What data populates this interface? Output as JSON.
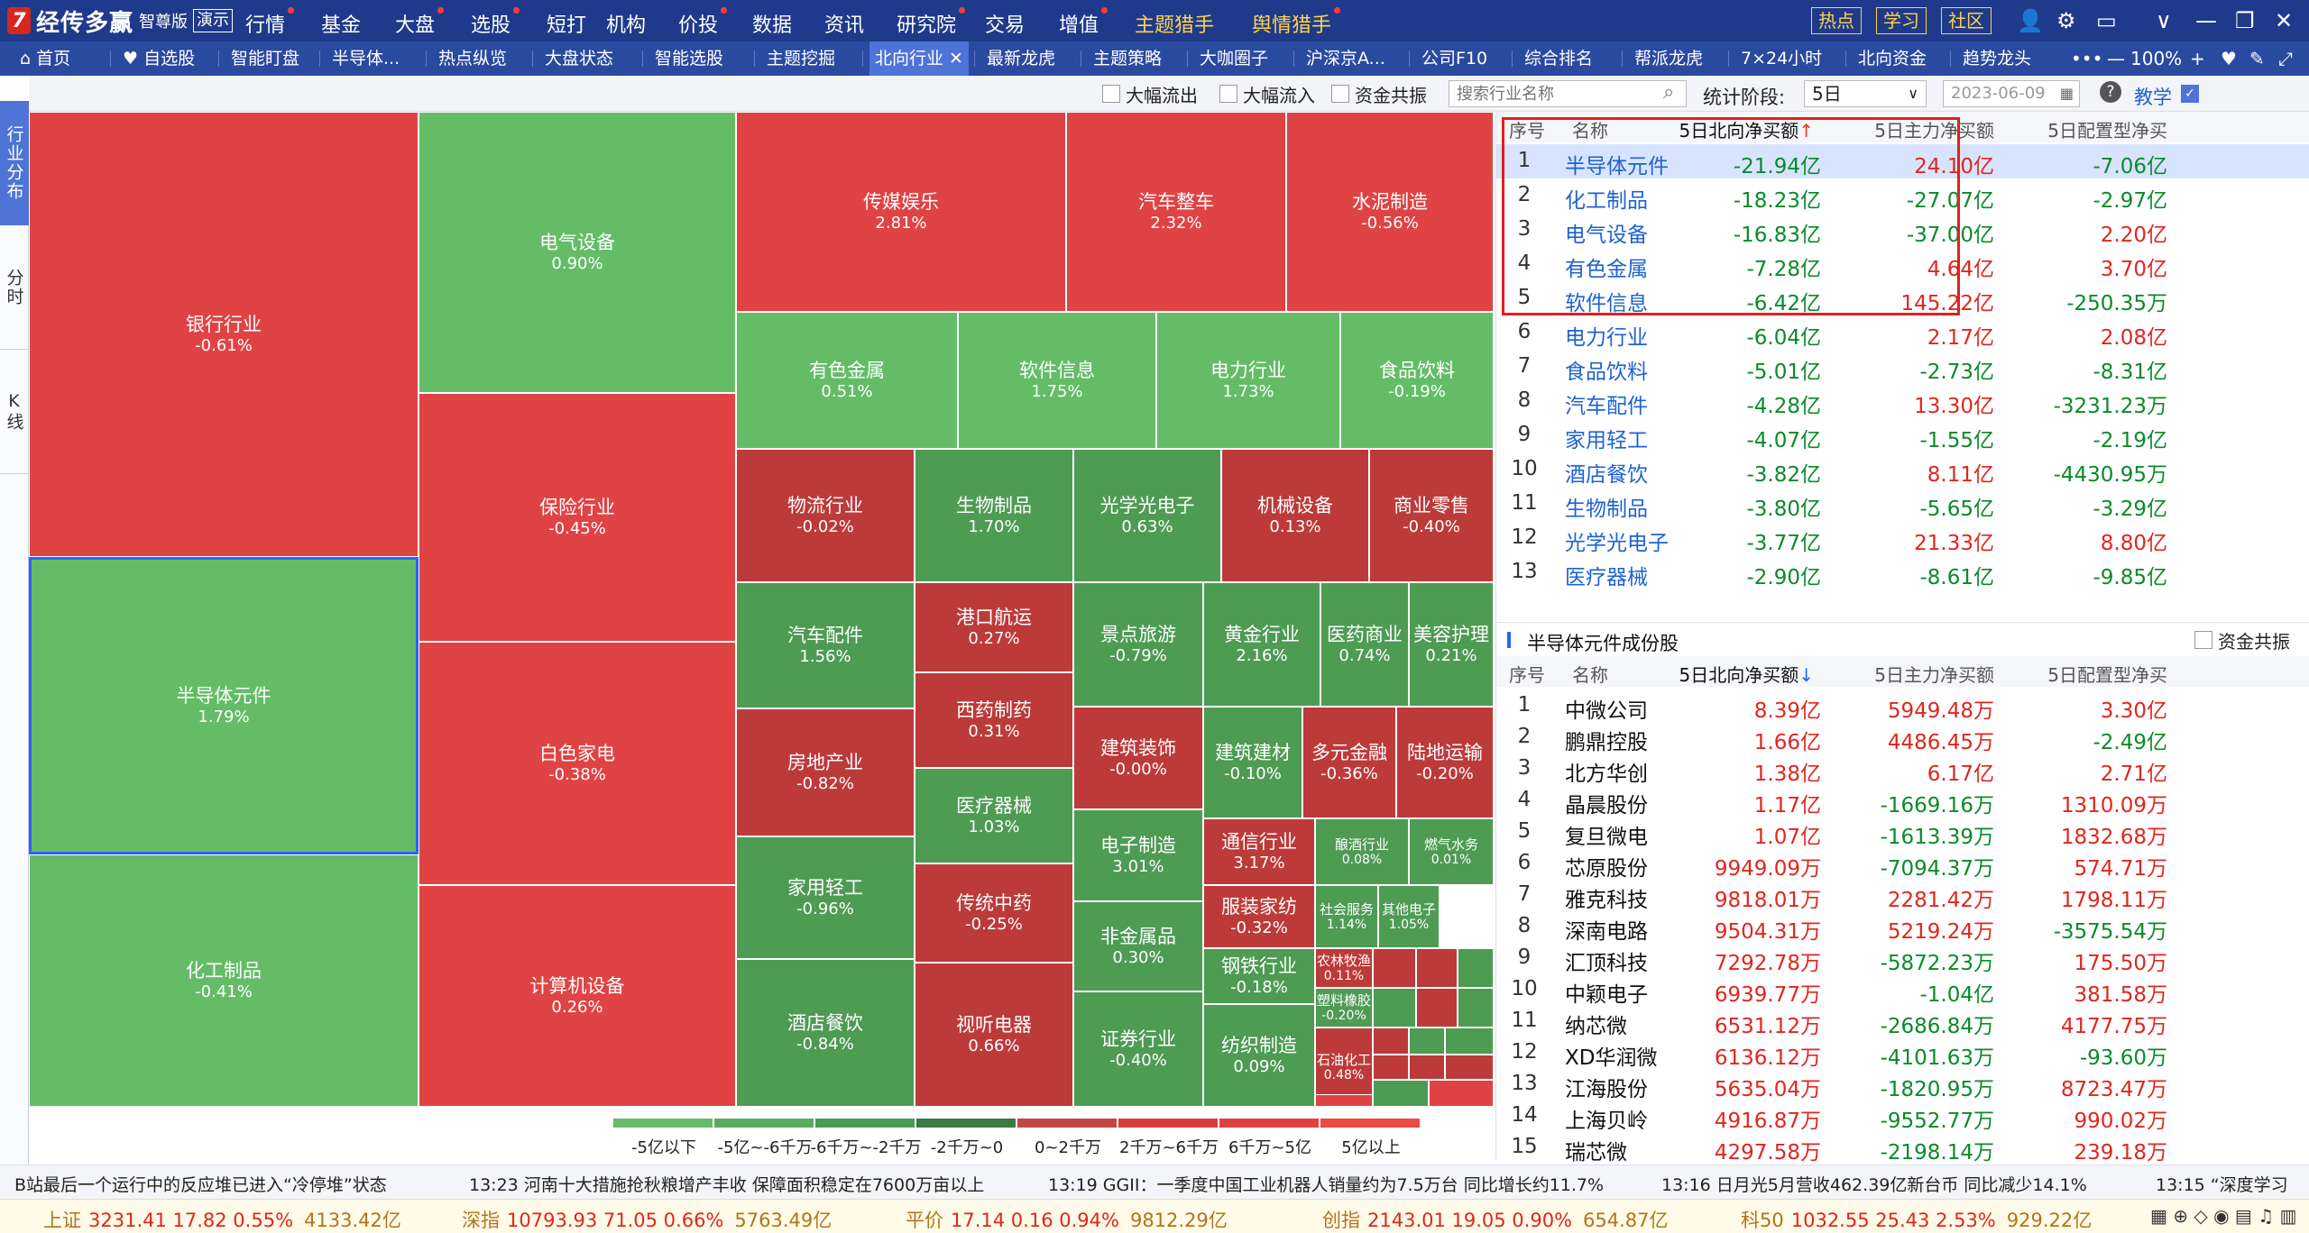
{
  "app": {
    "logo_mark": "7",
    "title": "经传多赢",
    "edition": "智尊版",
    "demo": "演示"
  },
  "menu": [
    {
      "label": "行情",
      "dot": true
    },
    {
      "label": "基金",
      "dot": false
    },
    {
      "label": "大盘",
      "dot": true
    },
    {
      "label": "选股",
      "dot": true
    },
    {
      "label": "短打",
      "dot": false
    },
    {
      "label": "机构",
      "dot": false
    },
    {
      "label": "价投",
      "dot": true
    },
    {
      "label": "数据",
      "dot": false
    },
    {
      "label": "资讯",
      "dot": false
    },
    {
      "label": "研究院",
      "dot": true
    },
    {
      "label": "交易",
      "dot": false
    },
    {
      "label": "增值",
      "dot": true
    },
    {
      "label": "主题猎手",
      "dot": false
    },
    {
      "label": "舆情猎手",
      "dot": true
    }
  ],
  "quick_buttons": [
    "热点",
    "学习",
    "社区"
  ],
  "window_controls": {
    "user": "👤",
    "settings": "⚙",
    "layout": "▭",
    "dropdown": "∨",
    "minimize": "—",
    "restore": "❐",
    "close": "✕"
  },
  "tabs": [
    {
      "label": "⌂ 首页"
    },
    {
      "label": "♥ 自选股"
    },
    {
      "label": "智能盯盘"
    },
    {
      "label": "半导体..."
    },
    {
      "label": "热点纵览"
    },
    {
      "label": "大盘状态"
    },
    {
      "label": "智能选股"
    },
    {
      "label": "主题挖掘"
    },
    {
      "label": "北向行业 ✕",
      "active": true
    },
    {
      "label": "最新龙虎"
    },
    {
      "label": "主题策略"
    },
    {
      "label": "大咖圈子"
    },
    {
      "label": "沪深京A..."
    },
    {
      "label": "公司F10"
    },
    {
      "label": "综合排名"
    },
    {
      "label": "帮派龙虎"
    },
    {
      "label": "7×24小时"
    },
    {
      "label": "北向资金"
    },
    {
      "label": "趋势龙头"
    }
  ],
  "tab_right": {
    "more": "•••",
    "zoom_out": "—",
    "zoom": "100%",
    "zoom_in": "+",
    "fav": "♥",
    "edit": "✎",
    "expand": "⤢"
  },
  "left_tabs": [
    "行业分布",
    "分时",
    "K线"
  ],
  "toolbar": {
    "check_outflow": "大幅流出",
    "check_inflow": "大幅流入",
    "check_resonance": "资金共振",
    "search_placeholder": "搜索行业名称",
    "stat_label": "统计阶段:",
    "period": "5日",
    "date": "2023-06-09",
    "help_icon": "?",
    "teach": "教学"
  },
  "legend": {
    "colors": [
      "#66bb6a",
      "#5cab60",
      "#4c9a55",
      "#3a7a45",
      "#c44545",
      "#d63d3a",
      "#e04040",
      "#e84a44"
    ],
    "labels": [
      "-5亿以下",
      "-5亿~-6千万",
      "-6千万~-2千万",
      "-2千万~0",
      "0~2千万",
      "2千万~6千万",
      "6千万~5亿",
      "5亿以上"
    ]
  },
  "heatmap": {
    "cells": [
      {
        "name": "银行行业",
        "value": "-0.61%",
        "color": "#e04343"
      },
      {
        "name": "半导体元件",
        "value": "1.79%",
        "color": "#64bd66",
        "selected": true
      },
      {
        "name": "化工制品",
        "value": "-0.41%",
        "color": "#64bd66"
      },
      {
        "name": "电气设备",
        "value": "0.90%",
        "color": "#64bd66"
      },
      {
        "name": "保险行业",
        "value": "-0.45%",
        "color": "#e04343"
      },
      {
        "name": "白色家电",
        "value": "-0.38%",
        "color": "#e04343"
      },
      {
        "name": "计算机设备",
        "value": "0.26%",
        "color": "#e04343"
      },
      {
        "name": "传媒娱乐",
        "value": "2.81%",
        "color": "#e04343"
      },
      {
        "name": "汽车整车",
        "value": "2.32%",
        "color": "#e04343"
      },
      {
        "name": "水泥制造",
        "value": "-0.56%",
        "color": "#e04343"
      },
      {
        "name": "有色金属",
        "value": "0.51%",
        "color": "#64bd66"
      },
      {
        "name": "软件信息",
        "value": "1.75%",
        "color": "#64bd66"
      },
      {
        "name": "电力行业",
        "value": "1.73%",
        "color": "#64bd66"
      },
      {
        "name": "食品饮料",
        "value": "-0.19%",
        "color": "#64bd66"
      },
      {
        "name": "物流行业",
        "value": "-0.02%",
        "color": "#bd3a3a"
      },
      {
        "name": "生物制品",
        "value": "1.70%",
        "color": "#4e9b54"
      },
      {
        "name": "光学光电子",
        "value": "0.63%",
        "color": "#4e9b54"
      },
      {
        "name": "机械设备",
        "value": "0.13%",
        "color": "#bd3a3a"
      },
      {
        "name": "商业零售",
        "value": "-0.40%",
        "color": "#bd3a3a"
      },
      {
        "name": "汽车配件",
        "value": "1.56%",
        "color": "#4e9b54"
      },
      {
        "name": "港口航运",
        "value": "0.27%",
        "color": "#bd3a3a"
      },
      {
        "name": "西药制药",
        "value": "0.31%",
        "color": "#bd3a3a"
      },
      {
        "name": "景点旅游",
        "value": "-0.79%",
        "color": "#4e9b54"
      },
      {
        "name": "黄金行业",
        "value": "2.16%",
        "color": "#4e9b54"
      },
      {
        "name": "医药商业",
        "value": "0.74%",
        "color": "#4e9b54"
      },
      {
        "name": "美容护理",
        "value": "0.21%",
        "color": "#4e9b54"
      },
      {
        "name": "房地产业",
        "value": "-0.82%",
        "color": "#bd3a3a"
      },
      {
        "name": "建筑装饰",
        "value": "-0.00%",
        "color": "#bd3a3a"
      },
      {
        "name": "建筑建材",
        "value": "-0.10%",
        "color": "#4e9b54"
      },
      {
        "name": "多元金融",
        "value": "-0.36%",
        "color": "#bd3a3a"
      },
      {
        "name": "陆地运输",
        "value": "-0.20%",
        "color": "#bd3a3a"
      },
      {
        "name": "医疗器械",
        "value": "1.03%",
        "color": "#4e9b54"
      },
      {
        "name": "家用轻工",
        "value": "-0.96%",
        "color": "#4e9b54"
      },
      {
        "name": "电子制造",
        "value": "3.01%",
        "color": "#4e9b54"
      },
      {
        "name": "通信行业",
        "value": "3.17%",
        "color": "#bd3a3a"
      },
      {
        "name": "酿酒行业",
        "value": "0.08%",
        "color": "#4e9b54"
      },
      {
        "name": "燃气水务",
        "value": "0.01%",
        "color": "#4e9b54"
      },
      {
        "name": "传统中药",
        "value": "-0.25%",
        "color": "#bd3a3a"
      },
      {
        "name": "非金属品",
        "value": "0.30%",
        "color": "#4e9b54"
      },
      {
        "name": "服装家纺",
        "value": "-0.32%",
        "color": "#bd3a3a"
      },
      {
        "name": "社会服务",
        "value": "1.14%",
        "color": "#4e9b54"
      },
      {
        "name": "其他电子",
        "value": "1.05%",
        "color": "#4e9b54"
      },
      {
        "name": "酒店餐饮",
        "value": "-0.84%",
        "color": "#4e9b54"
      },
      {
        "name": "视听电器",
        "value": "0.66%",
        "color": "#bd3a3a"
      },
      {
        "name": "证券行业",
        "value": "-0.40%",
        "color": "#4e9b54"
      },
      {
        "name": "钢铁行业",
        "value": "-0.18%",
        "color": "#4e9b54"
      },
      {
        "name": "农林牧渔",
        "value": "0.11%",
        "color": "#bd3a3a"
      },
      {
        "name": "纺织制造",
        "value": "0.09%",
        "color": "#4e9b54"
      },
      {
        "name": "塑料橡胶",
        "value": "-0.20%",
        "color": "#4e9b54"
      },
      {
        "name": "石油化工",
        "value": "0.48%",
        "color": "#bd3a3a"
      }
    ],
    "tiny_colors": [
      "#bd3a3a",
      "#bd3a3a",
      "#4e9b54",
      "#4e9b54",
      "#bd3a3a",
      "#4e9b54",
      "#bd3a3a",
      "#4e9b54",
      "#4e9b54",
      "#bd3a3a",
      "#bd3a3a",
      "#bd3a3a",
      "#4e9b54",
      "#e04343",
      "#e04343"
    ]
  },
  "industry_table": {
    "headers": [
      "序号",
      "名称",
      "5日北向净买额",
      "5日主力净买额",
      "5日配置型净买"
    ],
    "sort_arrow": "↑",
    "rows": [
      {
        "idx": "1",
        "name": "半导体元件",
        "north": "-21.94亿",
        "main": "24.10亿",
        "config": "-7.06亿"
      },
      {
        "idx": "2",
        "name": "化工制品",
        "north": "-18.23亿",
        "main": "-27.07亿",
        "config": "-2.97亿"
      },
      {
        "idx": "3",
        "name": "电气设备",
        "north": "-16.83亿",
        "main": "-37.00亿",
        "config": "2.20亿"
      },
      {
        "idx": "4",
        "name": "有色金属",
        "north": "-7.28亿",
        "main": "4.64亿",
        "config": "3.70亿"
      },
      {
        "idx": "5",
        "name": "软件信息",
        "north": "-6.42亿",
        "main": "145.22亿",
        "config": "-250.35万"
      },
      {
        "idx": "6",
        "name": "电力行业",
        "north": "-6.04亿",
        "main": "2.17亿",
        "config": "2.08亿"
      },
      {
        "idx": "7",
        "name": "食品饮料",
        "north": "-5.01亿",
        "main": "-2.73亿",
        "config": "-8.31亿"
      },
      {
        "idx": "8",
        "name": "汽车配件",
        "north": "-4.28亿",
        "main": "13.30亿",
        "config": "-3231.23万"
      },
      {
        "idx": "9",
        "name": "家用轻工",
        "north": "-4.07亿",
        "main": "-1.55亿",
        "config": "-2.19亿"
      },
      {
        "idx": "10",
        "name": "酒店餐饮",
        "north": "-3.82亿",
        "main": "8.11亿",
        "config": "-4430.95万"
      },
      {
        "idx": "11",
        "name": "生物制品",
        "north": "-3.80亿",
        "main": "-5.65亿",
        "config": "-3.29亿"
      },
      {
        "idx": "12",
        "name": "光学光电子",
        "north": "-3.77亿",
        "main": "21.33亿",
        "config": "8.80亿"
      },
      {
        "idx": "13",
        "name": "医疗器械",
        "north": "-2.90亿",
        "main": "-8.61亿",
        "config": "-9.85亿"
      }
    ]
  },
  "stocks_section": {
    "title": "半导体元件成份股",
    "check_resonance": "资金共振",
    "headers": [
      "序号",
      "名称",
      "5日北向净买额",
      "5日主力净买额",
      "5日配置型净买"
    ],
    "sort_arrow": "↓",
    "rows": [
      {
        "idx": "1",
        "name": "中微公司",
        "north": "8.39亿",
        "main": "5949.48万",
        "config": "3.30亿"
      },
      {
        "idx": "2",
        "name": "鹏鼎控股",
        "north": "1.66亿",
        "main": "4486.45万",
        "config": "-2.49亿"
      },
      {
        "idx": "3",
        "name": "北方华创",
        "north": "1.38亿",
        "main": "6.17亿",
        "config": "2.71亿"
      },
      {
        "idx": "4",
        "name": "晶晨股份",
        "north": "1.17亿",
        "main": "-1669.16万",
        "config": "1310.09万"
      },
      {
        "idx": "5",
        "name": "复旦微电",
        "north": "1.07亿",
        "main": "-1613.39万",
        "config": "1832.68万"
      },
      {
        "idx": "6",
        "name": "芯原股份",
        "north": "9949.09万",
        "main": "-7094.37万",
        "config": "574.71万"
      },
      {
        "idx": "7",
        "name": "雅克科技",
        "north": "9818.01万",
        "main": "2281.42万",
        "config": "1798.11万"
      },
      {
        "idx": "8",
        "name": "深南电路",
        "north": "9504.31万",
        "main": "5219.24万",
        "config": "-3575.54万"
      },
      {
        "idx": "9",
        "name": "汇顶科技",
        "north": "7292.78万",
        "main": "-5872.23万",
        "config": "175.50万"
      },
      {
        "idx": "10",
        "name": "中颖电子",
        "north": "6939.77万",
        "main": "-1.04亿",
        "config": "381.58万"
      },
      {
        "idx": "11",
        "name": "纳芯微",
        "north": "6531.12万",
        "main": "-2686.84万",
        "config": "4177.75万"
      },
      {
        "idx": "12",
        "name": "XD华润微",
        "north": "6136.12万",
        "main": "-4101.63万",
        "config": "-93.60万"
      },
      {
        "idx": "13",
        "name": "江海股份",
        "north": "5635.04万",
        "main": "-1820.95万",
        "config": "8723.47万"
      },
      {
        "idx": "14",
        "name": "上海贝岭",
        "north": "4916.87万",
        "main": "-9552.77万",
        "config": "990.02万"
      },
      {
        "idx": "15",
        "name": "瑞芯微",
        "north": "4297.58万",
        "main": "-2198.14万",
        "config": "239.18万"
      }
    ]
  },
  "news": [
    "B站最后一个运行中的反应堆已进入“冷停堆”状态",
    "13:23  河南十大措施抢秋粮增产丰收 保障面积稳定在7600万亩以上",
    "13:19  GGII：一季度中国工业机器人销量约为7.5万台 同比增长约11.7%",
    "13:16  日月光5月营收462.39亿新台币 同比减少14.1%",
    "13:15  “深度学习"
  ],
  "indices": [
    {
      "label": "上证",
      "value": "3231.41  17.82  0.55%",
      "amount": "4133.42亿"
    },
    {
      "label": "深指",
      "value": "10793.93  71.05  0.66%",
      "amount": "5763.49亿"
    },
    {
      "label": "平价",
      "value": "17.14  0.16  0.94%",
      "amount": "9812.29亿"
    },
    {
      "label": "创指",
      "value": "2143.01  19.05  0.90%",
      "amount": "654.87亿"
    },
    {
      "label": "科50",
      "value": "1032.55  25.43  2.53%",
      "amount": "929.22亿"
    }
  ],
  "status_icons": "▦ ⊕ ◇ ◉ ▤ ♫ ▥"
}
